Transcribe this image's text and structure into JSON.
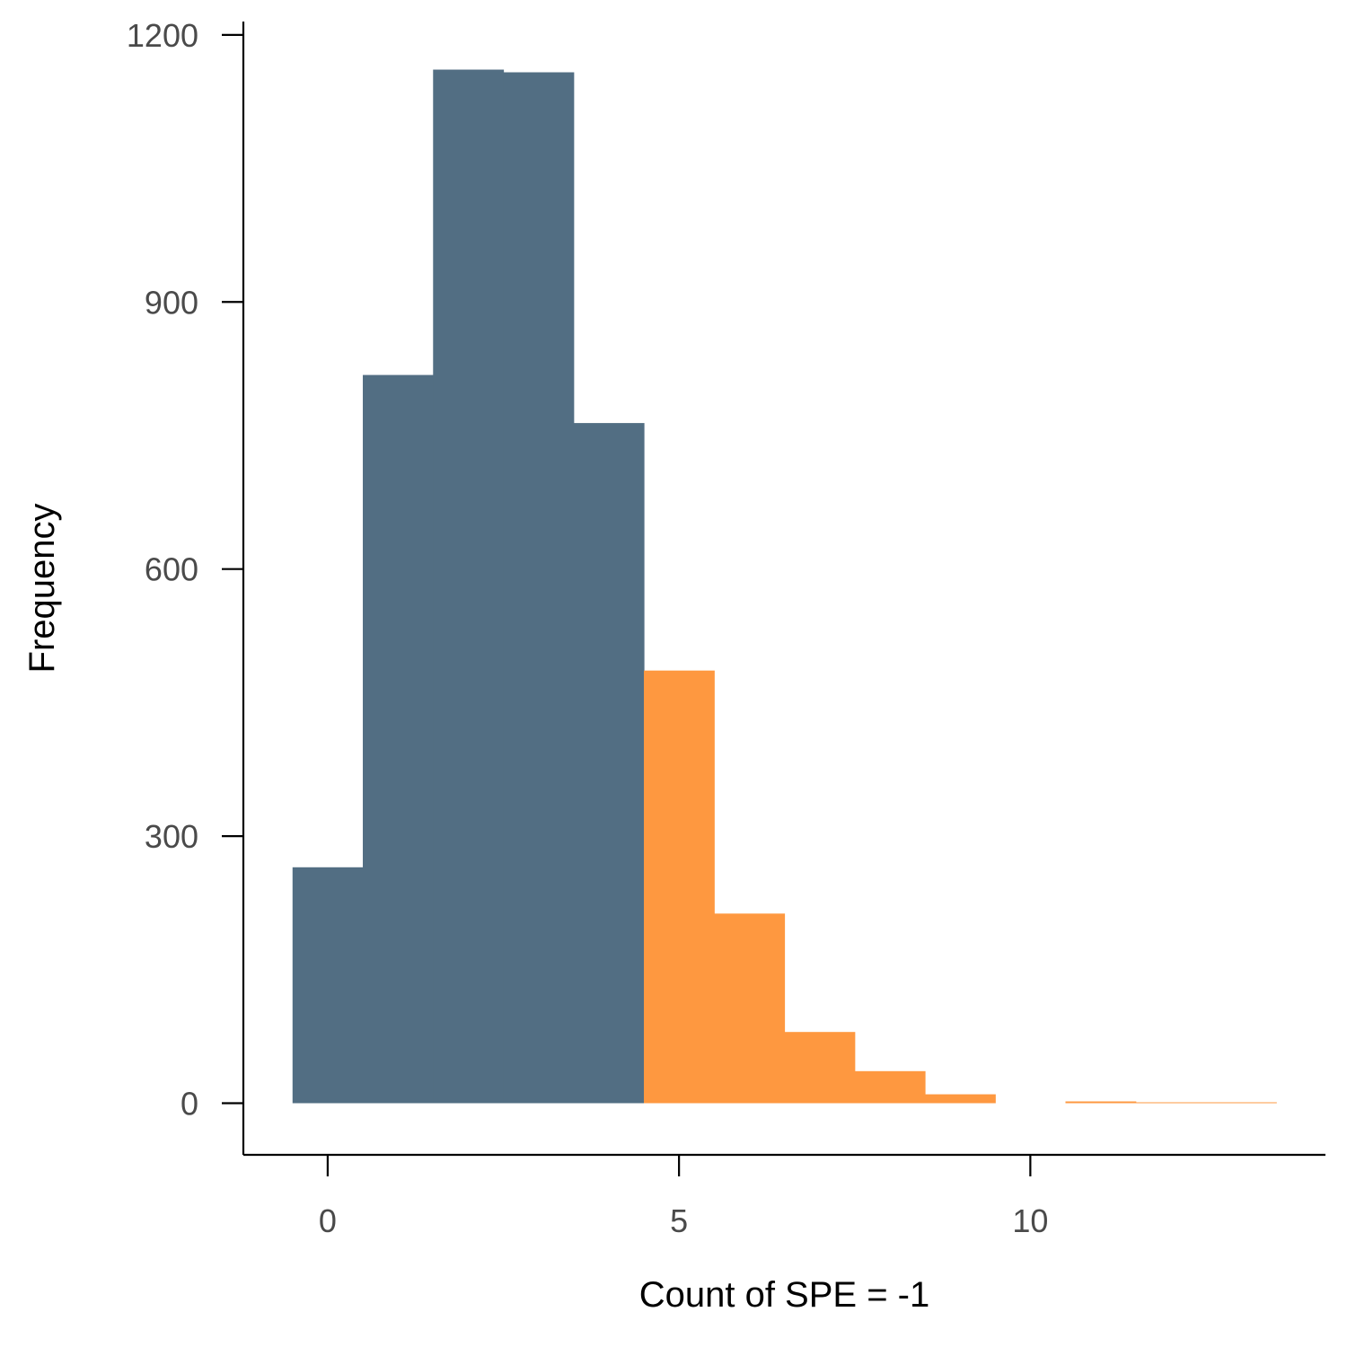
{
  "chart_data": {
    "type": "bar",
    "title": "",
    "xlabel": "Count of SPE = -1",
    "ylabel": "Frequency",
    "bin_width": 1,
    "x": [
      0,
      1,
      2,
      3,
      4,
      5,
      6,
      7,
      8,
      9,
      10,
      11,
      12,
      13
    ],
    "values": [
      265,
      818,
      1161,
      1158,
      764,
      486,
      213,
      80,
      36,
      10,
      0,
      2,
      1,
      1
    ],
    "series": [
      {
        "name": "",
        "x": [
          0,
          1,
          2,
          3,
          4
        ],
        "values": [
          265,
          818,
          1161,
          1158,
          764
        ],
        "color": "#526e83"
      },
      {
        "name": "",
        "x": [
          5,
          6,
          7,
          8,
          9,
          10,
          11,
          12,
          13
        ],
        "values": [
          486,
          213,
          80,
          36,
          10,
          0,
          2,
          1,
          1
        ],
        "color": "#fe9840"
      }
    ],
    "xlim": [
      -1.2,
      14.2
    ],
    "ylim": [
      -58,
      1215
    ],
    "xticks": [
      0,
      5,
      10
    ],
    "yticks": [
      0,
      300,
      600,
      900,
      1200
    ],
    "xtick_labels": [
      "0",
      "5",
      "10"
    ],
    "ytick_labels": [
      "0",
      "300",
      "600",
      "900",
      "1200"
    ],
    "grid": false,
    "legend": "none"
  }
}
